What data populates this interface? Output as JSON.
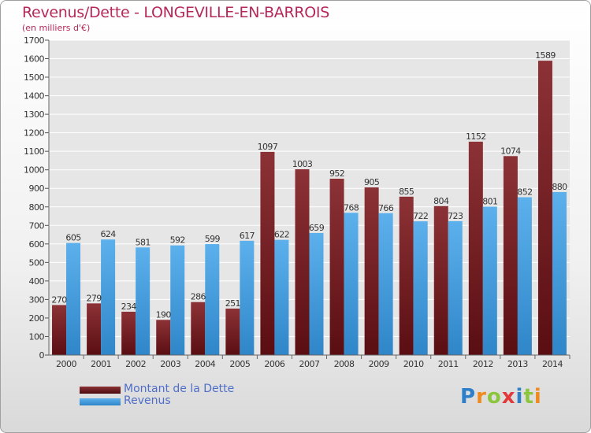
{
  "chart_data": {
    "type": "bar",
    "title": "Revenus/Dette - LONGEVILLE-EN-BARROIS",
    "subtitle": "(en milliers d'€)",
    "xlabel": "",
    "ylabel": "",
    "ylim": [
      0,
      1700
    ],
    "yticks": [
      "0",
      "100",
      "200",
      "300",
      "400",
      "500",
      "600",
      "700",
      "800",
      "900",
      "1000",
      "1100",
      "1200",
      "1300",
      "1400",
      "1500",
      "1600",
      "1700"
    ],
    "grid": true,
    "categories": [
      "2000",
      "2001",
      "2002",
      "2003",
      "2004",
      "2005",
      "2006",
      "2007",
      "2008",
      "2009",
      "2010",
      "2011",
      "2012",
      "2013",
      "2014"
    ],
    "series": [
      {
        "name": "Montant de la Dette",
        "color": "#7a2b30",
        "values": [
          270,
          279,
          234,
          190,
          286,
          251,
          1097,
          1003,
          952,
          905,
          855,
          804,
          1152,
          1074,
          1589
        ]
      },
      {
        "name": "Revenus",
        "color": "#4a9fdc",
        "values": [
          605,
          624,
          581,
          592,
          599,
          617,
          622,
          659,
          768,
          766,
          722,
          723,
          801,
          852,
          880
        ]
      }
    ],
    "legend_position": "bottom-left"
  },
  "branding": {
    "logo_text": "Proxiti"
  }
}
